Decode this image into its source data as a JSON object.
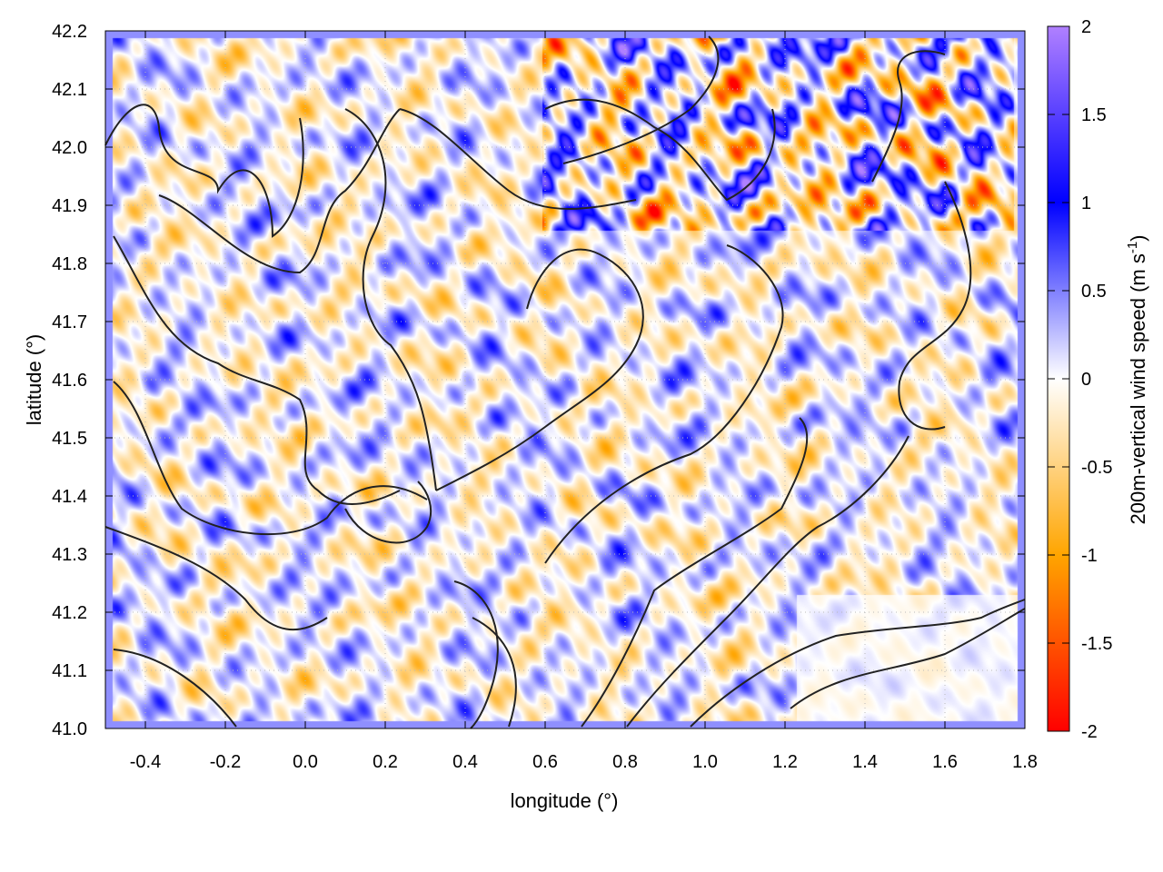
{
  "chart_data": {
    "type": "heatmap",
    "xlabel": "longitude (°)",
    "ylabel": "latitude (°)",
    "xlim": [
      -0.5,
      1.8
    ],
    "ylim": [
      41.0,
      42.2
    ],
    "xticks": [
      "-0.4",
      "-0.2",
      "0.0",
      "0.2",
      "0.4",
      "0.6",
      "0.8",
      "1.0",
      "1.2",
      "1.4",
      "1.6",
      "1.8"
    ],
    "yticks": [
      "41.0",
      "41.1",
      "41.2",
      "41.3",
      "41.4",
      "41.5",
      "41.6",
      "41.7",
      "41.8",
      "41.9",
      "42.0",
      "42.1",
      "42.2"
    ],
    "grid": true,
    "overlay": "black topography contour lines",
    "colorbar": {
      "label": "200m-vertical wind speed (m s",
      "label_sup": "-1",
      "label_end": ")",
      "range": [
        -2,
        2
      ],
      "ticks": [
        "2",
        "1.5",
        "1",
        "0.5",
        "0",
        "-0.5",
        "-1",
        "-1.5",
        "-2"
      ],
      "colors": {
        "-2": "#ff0000",
        "-1": "#ffa500",
        "0": "#ffffff",
        "1": "#0000ff",
        "2": "#b080ff"
      }
    }
  }
}
